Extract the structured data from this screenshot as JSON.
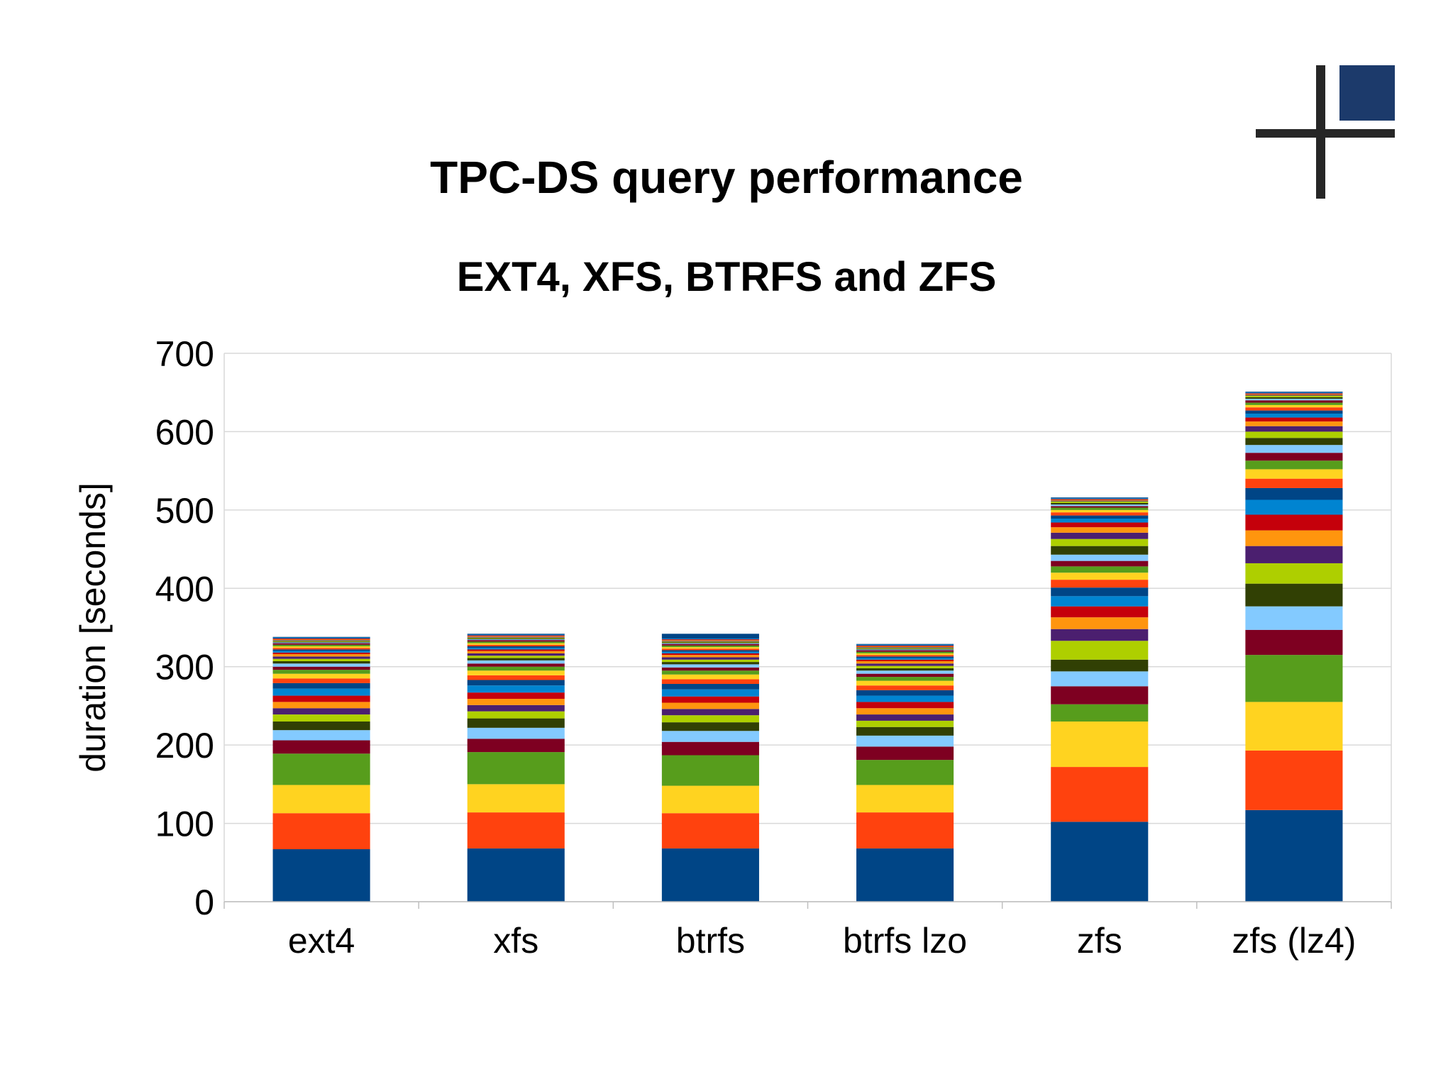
{
  "chart_data": {
    "type": "bar",
    "stacked": true,
    "title": "TPC-DS query performance",
    "subtitle": "EXT4, XFS, BTRFS and ZFS",
    "xlabel": "",
    "ylabel": "duration [seconds]",
    "ylim": [
      0,
      700
    ],
    "yticks": [
      0,
      100,
      200,
      300,
      400,
      500,
      600,
      700
    ],
    "grid": true,
    "legend": "none",
    "categories": [
      "ext4",
      "xfs",
      "btrfs",
      "btrfs lzo",
      "zfs",
      "zfs (lz4)"
    ],
    "palette": [
      "#004586",
      "#ff420e",
      "#ffd320",
      "#579d1c",
      "#7e0021",
      "#83caff",
      "#314004",
      "#aecf00",
      "#4b1f6f",
      "#ff950e",
      "#c5000b",
      "#0084d1"
    ],
    "series": [
      {
        "values": [
          67,
          68,
          68,
          68,
          102,
          117
        ]
      },
      {
        "values": [
          46,
          46,
          45,
          46,
          70,
          76
        ]
      },
      {
        "values": [
          36,
          36,
          35,
          35,
          58,
          62
        ]
      },
      {
        "values": [
          40,
          41,
          39,
          32,
          22,
          60
        ]
      },
      {
        "values": [
          17,
          17,
          17,
          17,
          23,
          32
        ]
      },
      {
        "values": [
          13,
          14,
          14,
          14,
          19,
          30
        ]
      },
      {
        "values": [
          11,
          12,
          11,
          11,
          15,
          29
        ]
      },
      {
        "values": [
          9,
          9,
          9,
          8,
          24,
          26
        ]
      },
      {
        "values": [
          8,
          8,
          8,
          8,
          15,
          22
        ]
      },
      {
        "values": [
          8,
          8,
          8,
          8,
          15,
          20
        ]
      },
      {
        "values": [
          8,
          8,
          8,
          8,
          14,
          20
        ]
      },
      {
        "values": [
          9,
          9,
          9,
          8,
          13,
          19
        ]
      },
      {
        "values": [
          7,
          7,
          7,
          7,
          11,
          15
        ]
      },
      {
        "values": [
          6,
          6,
          6,
          6,
          10,
          12
        ]
      },
      {
        "values": [
          6,
          6,
          6,
          6,
          9,
          12
        ]
      },
      {
        "values": [
          5,
          5,
          5,
          5,
          8,
          11
        ]
      },
      {
        "values": [
          4,
          4,
          4,
          4,
          7,
          10
        ]
      },
      {
        "values": [
          4,
          4,
          4,
          4,
          8,
          10
        ]
      },
      {
        "values": [
          3,
          3,
          3,
          3,
          11,
          9
        ]
      },
      {
        "values": [
          3,
          3,
          3,
          3,
          9,
          8
        ]
      },
      {
        "values": [
          3,
          3,
          3,
          3,
          8,
          7
        ]
      },
      {
        "values": [
          3,
          3,
          3,
          3,
          7,
          6
        ]
      },
      {
        "values": [
          2,
          2,
          2,
          2,
          6,
          5
        ]
      },
      {
        "values": [
          2,
          2,
          2,
          2,
          5,
          5
        ]
      },
      {
        "values": [
          2,
          2,
          2,
          2,
          4,
          4
        ]
      },
      {
        "values": [
          2,
          2,
          2,
          2,
          4,
          4
        ]
      },
      {
        "values": [
          2,
          2,
          2,
          2,
          3,
          3
        ]
      },
      {
        "values": [
          2,
          2,
          2,
          2,
          3,
          3
        ]
      },
      {
        "values": [
          2,
          2,
          2,
          2,
          2,
          3
        ]
      },
      {
        "values": [
          1,
          1,
          1,
          1,
          2,
          2
        ]
      },
      {
        "values": [
          1,
          1,
          1,
          1,
          2,
          2
        ]
      },
      {
        "values": [
          1,
          1,
          1,
          1,
          2,
          2
        ]
      },
      {
        "values": [
          1,
          1,
          1,
          1,
          1,
          1
        ]
      },
      {
        "values": [
          1,
          1,
          1,
          1,
          1,
          1
        ]
      },
      {
        "values": [
          1,
          1,
          1,
          1,
          1,
          1
        ]
      },
      {
        "values": [
          1,
          1,
          1,
          1,
          1,
          1
        ]
      },
      {
        "values": [
          1,
          1,
          6,
          1,
          1,
          1
        ]
      }
    ]
  }
}
